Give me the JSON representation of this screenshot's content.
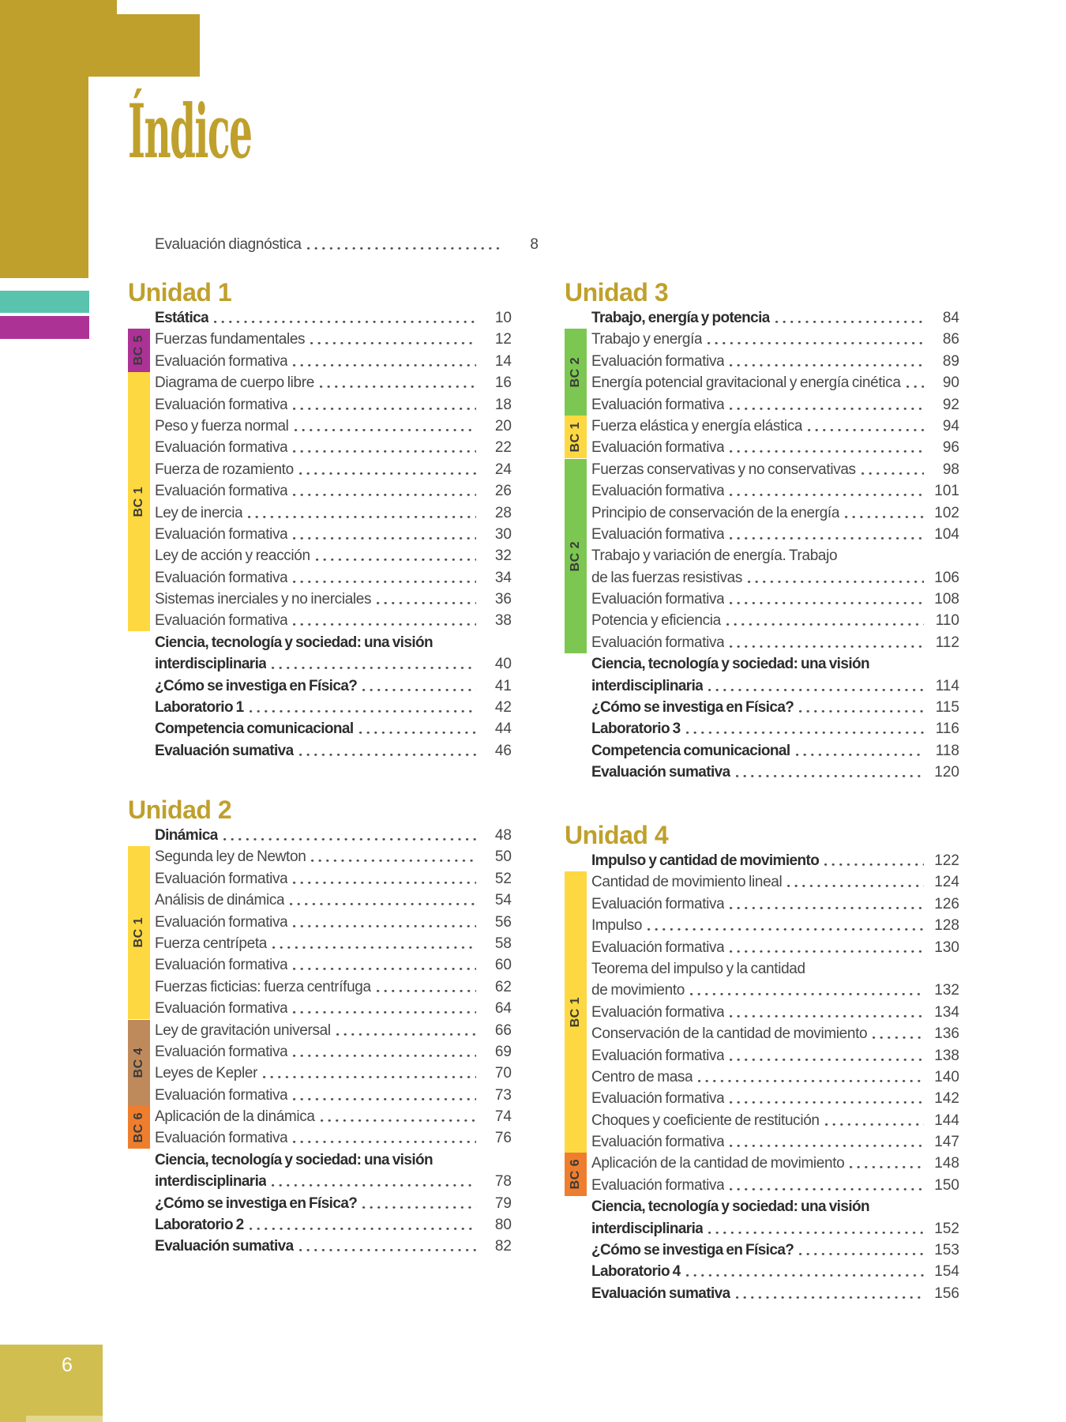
{
  "page": {
    "title": "Índice",
    "footer_page_number": "6",
    "colors": {
      "gold": "#bfa02c",
      "footer_gold": "#d0bf50",
      "footer_gold_light": "#e3d88f",
      "teal": "#59c3ad",
      "magenta": "#ac3295",
      "yellow": "#fed841",
      "green": "#7cc751",
      "tan": "#bf8a5b",
      "orange": "#ee7e2e",
      "body_text": "#474747",
      "bold_text": "#2d2d2d"
    }
  },
  "front_matter": {
    "label": "Evaluación diagnóstica",
    "page": "8"
  },
  "units": [
    {
      "heading": "Unidad 1",
      "entries": [
        {
          "text": "Estática",
          "page": "10",
          "bold": true
        },
        {
          "text": "Fuerzas fundamentales",
          "page": "12"
        },
        {
          "text": "Evaluación formativa",
          "page": "14"
        },
        {
          "text": "Diagrama de cuerpo libre",
          "page": "16"
        },
        {
          "text": "Evaluación formativa",
          "page": "18"
        },
        {
          "text": "Peso y fuerza normal",
          "page": "20"
        },
        {
          "text": "Evaluación formativa",
          "page": "22"
        },
        {
          "text": "Fuerza de rozamiento",
          "page": "24"
        },
        {
          "text": "Evaluación formativa",
          "page": "26"
        },
        {
          "text": "Ley de inercia",
          "page": "28"
        },
        {
          "text": "Evaluación formativa",
          "page": "30"
        },
        {
          "text": "Ley de acción y reacción",
          "page": "32"
        },
        {
          "text": "Evaluación formativa",
          "page": "34"
        },
        {
          "text": "Sistemas inerciales y no inerciales",
          "page": "36"
        },
        {
          "text": "Evaluación formativa",
          "page": "38"
        },
        {
          "text": "Ciencia, tecnología y sociedad: una visión",
          "text2": "interdisciplinaria",
          "page": "40",
          "bold": true
        },
        {
          "text": "¿Cómo se investiga en Física?",
          "page": "41",
          "bold": true
        },
        {
          "text": "Laboratorio 1",
          "page": "42",
          "bold": true
        },
        {
          "text": "Competencia comunicacional",
          "page": "44",
          "bold": true
        },
        {
          "text": "Evaluación sumativa",
          "page": "46",
          "bold": true
        }
      ],
      "markers": [
        {
          "label": "BC 5",
          "color": "magenta",
          "from": 1,
          "to": 2
        },
        {
          "label": "BC 1",
          "color": "yellow",
          "from": 3,
          "to": 14
        }
      ]
    },
    {
      "heading": "Unidad 2",
      "entries": [
        {
          "text": "Dinámica",
          "page": "48",
          "bold": true
        },
        {
          "text": "Segunda ley de Newton",
          "page": "50"
        },
        {
          "text": "Evaluación formativa",
          "page": "52"
        },
        {
          "text": "Análisis de dinámica",
          "page": "54"
        },
        {
          "text": "Evaluación formativa",
          "page": "56"
        },
        {
          "text": "Fuerza centrípeta",
          "page": "58"
        },
        {
          "text": "Evaluación formativa",
          "page": "60"
        },
        {
          "text": "Fuerzas ficticias: fuerza centrífuga",
          "page": "62"
        },
        {
          "text": "Evaluación formativa",
          "page": "64"
        },
        {
          "text": "Ley de gravitación universal",
          "page": "66"
        },
        {
          "text": "Evaluación formativa",
          "page": "69"
        },
        {
          "text": "Leyes de Kepler",
          "page": "70"
        },
        {
          "text": "Evaluación formativa",
          "page": "73"
        },
        {
          "text": "Aplicación de la dinámica",
          "page": "74"
        },
        {
          "text": "Evaluación formativa",
          "page": "76"
        },
        {
          "text": "Ciencia, tecnología y sociedad: una visión",
          "text2": "interdisciplinaria",
          "page": "78",
          "bold": true
        },
        {
          "text": "¿Cómo se investiga en Física?",
          "page": "79",
          "bold": true
        },
        {
          "text": "Laboratorio 2",
          "page": "80",
          "bold": true
        },
        {
          "text": "Evaluación sumativa",
          "page": "82",
          "bold": true
        }
      ],
      "markers": [
        {
          "label": "BC 1",
          "color": "yellow",
          "from": 1,
          "to": 8
        },
        {
          "label": "BC 4",
          "color": "tan",
          "from": 9,
          "to": 12
        },
        {
          "label": "BC 6",
          "color": "orange",
          "from": 13,
          "to": 14
        }
      ]
    },
    {
      "heading": "Unidad 3",
      "entries": [
        {
          "text": "Trabajo, energía y potencia",
          "page": "84",
          "bold": true
        },
        {
          "text": "Trabajo y energía",
          "page": "86"
        },
        {
          "text": "Evaluación formativa",
          "page": "89"
        },
        {
          "text": "Energía potencial gravitacional y energía cinética",
          "page": "90"
        },
        {
          "text": "Evaluación formativa",
          "page": "92"
        },
        {
          "text": "Fuerza elástica y energía elástica",
          "page": "94"
        },
        {
          "text": "Evaluación formativa",
          "page": "96"
        },
        {
          "text": "Fuerzas conservativas y no conservativas",
          "page": "98"
        },
        {
          "text": "Evaluación formativa",
          "page": "101"
        },
        {
          "text": "Principio de conservación de la energía",
          "page": "102"
        },
        {
          "text": "Evaluación formativa",
          "page": "104"
        },
        {
          "text": "Trabajo y variación de energía. Trabajo",
          "text2": "de las fuerzas resistivas",
          "page": "106"
        },
        {
          "text": "Evaluación formativa",
          "page": "108"
        },
        {
          "text": "Potencia y eficiencia",
          "page": "110"
        },
        {
          "text": "Evaluación formativa",
          "page": "112"
        },
        {
          "text": "Ciencia, tecnología y sociedad: una visión",
          "text2": "interdisciplinaria",
          "page": "114",
          "bold": true
        },
        {
          "text": "¿Cómo se investiga en Física?",
          "page": "115",
          "bold": true
        },
        {
          "text": "Laboratorio 3",
          "page": "116",
          "bold": true
        },
        {
          "text": "Competencia comunicacional",
          "page": "118",
          "bold": true
        },
        {
          "text": "Evaluación sumativa",
          "page": "120",
          "bold": true
        }
      ],
      "markers": [
        {
          "label": "BC 2",
          "color": "green",
          "from": 1,
          "to": 4
        },
        {
          "label": "BC 1",
          "color": "yellow",
          "from": 5,
          "to": 6
        },
        {
          "label": "BC 2",
          "color": "green",
          "from": 7,
          "to": 14
        }
      ]
    },
    {
      "heading": "Unidad 4",
      "entries": [
        {
          "text": "Impulso y cantidad de movimiento",
          "page": "122",
          "bold": true
        },
        {
          "text": "Cantidad de movimiento lineal",
          "page": "124"
        },
        {
          "text": "Evaluación formativa",
          "page": "126"
        },
        {
          "text": "Impulso",
          "page": "128"
        },
        {
          "text": "Evaluación formativa",
          "page": "130"
        },
        {
          "text": "Teorema del impulso y la cantidad",
          "text2": "de movimiento",
          "page": "132"
        },
        {
          "text": "Evaluación formativa",
          "page": "134"
        },
        {
          "text": "Conservación de la cantidad de movimiento",
          "page": "136"
        },
        {
          "text": "Evaluación formativa",
          "page": "138"
        },
        {
          "text": "Centro de masa",
          "page": "140"
        },
        {
          "text": "Evaluación formativa",
          "page": "142"
        },
        {
          "text": "Choques y coeficiente de restitución",
          "page": "144"
        },
        {
          "text": "Evaluación formativa",
          "page": "147"
        },
        {
          "text": "Aplicación de la cantidad de movimiento",
          "page": "148"
        },
        {
          "text": "Evaluación formativa",
          "page": "150"
        },
        {
          "text": "Ciencia, tecnología y sociedad: una visión",
          "text2": "interdisciplinaria",
          "page": "152",
          "bold": true
        },
        {
          "text": "¿Cómo se investiga en Física?",
          "page": "153",
          "bold": true
        },
        {
          "text": "Laboratorio 4",
          "page": "154",
          "bold": true
        },
        {
          "text": "Evaluación sumativa",
          "page": "156",
          "bold": true
        }
      ],
      "markers": [
        {
          "label": "BC 1",
          "color": "yellow",
          "from": 1,
          "to": 12
        },
        {
          "label": "BC 6",
          "color": "orange",
          "from": 13,
          "to": 14
        }
      ]
    }
  ]
}
